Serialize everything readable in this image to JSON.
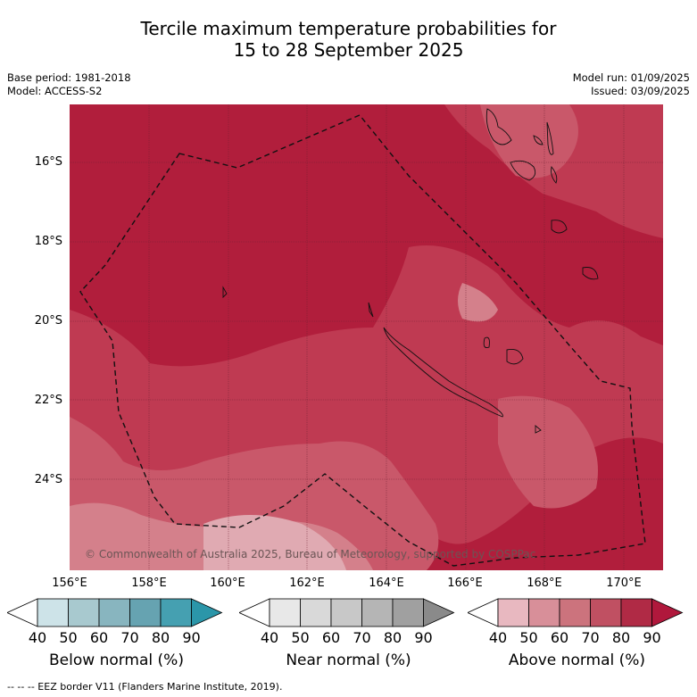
{
  "title_line1": "Tercile maximum temperature probabilities for",
  "title_line2": "15 to 28 September 2025",
  "base_period": "Base period: 1981-2018",
  "model": "Model: ACCESS-S2",
  "model_run": "Model run: 01/09/2025",
  "issued": "Issued: 03/09/2025",
  "lat_labels": [
    "16°S",
    "18°S",
    "20°S",
    "22°S",
    "24°S"
  ],
  "lon_labels": [
    "156°E",
    "158°E",
    "160°E",
    "162°E",
    "164°E",
    "166°E",
    "168°E",
    "170°E"
  ],
  "copyright": "© Commonwealth of Australia 2025, Bureau of Meteorology, supported by COSPPac",
  "colorbars": [
    {
      "label": "Below normal (%)",
      "ticks": [
        "40",
        "50",
        "60",
        "70",
        "80",
        "90"
      ],
      "colors": [
        "#ffffff",
        "#cde3e8",
        "#a8c9cf",
        "#88b5bf",
        "#66a3b1",
        "#45a0b1",
        "#2b96a9"
      ]
    },
    {
      "label": "Near normal (%)",
      "ticks": [
        "40",
        "50",
        "60",
        "70",
        "80",
        "90"
      ],
      "colors": [
        "#ffffff",
        "#e8e8e8",
        "#d9d9d9",
        "#c8c8c8",
        "#b5b5b5",
        "#a0a0a0",
        "#8a8a8a"
      ]
    },
    {
      "label": "Above normal (%)",
      "ticks": [
        "40",
        "50",
        "60",
        "70",
        "80",
        "90"
      ],
      "colors": [
        "#ffffff",
        "#e8b8c0",
        "#d88f99",
        "#cc737d",
        "#c05062",
        "#b02a45",
        "#b0183c"
      ]
    }
  ],
  "footer": "--  --  -- EEZ border V11 (Flanders Marine Institute, 2019).",
  "map_colors": {
    "c90": "#b11e3c",
    "c80": "#bf3a52",
    "c70": "#c9586a",
    "c60": "#d4808b",
    "c50": "#e0aab2"
  }
}
